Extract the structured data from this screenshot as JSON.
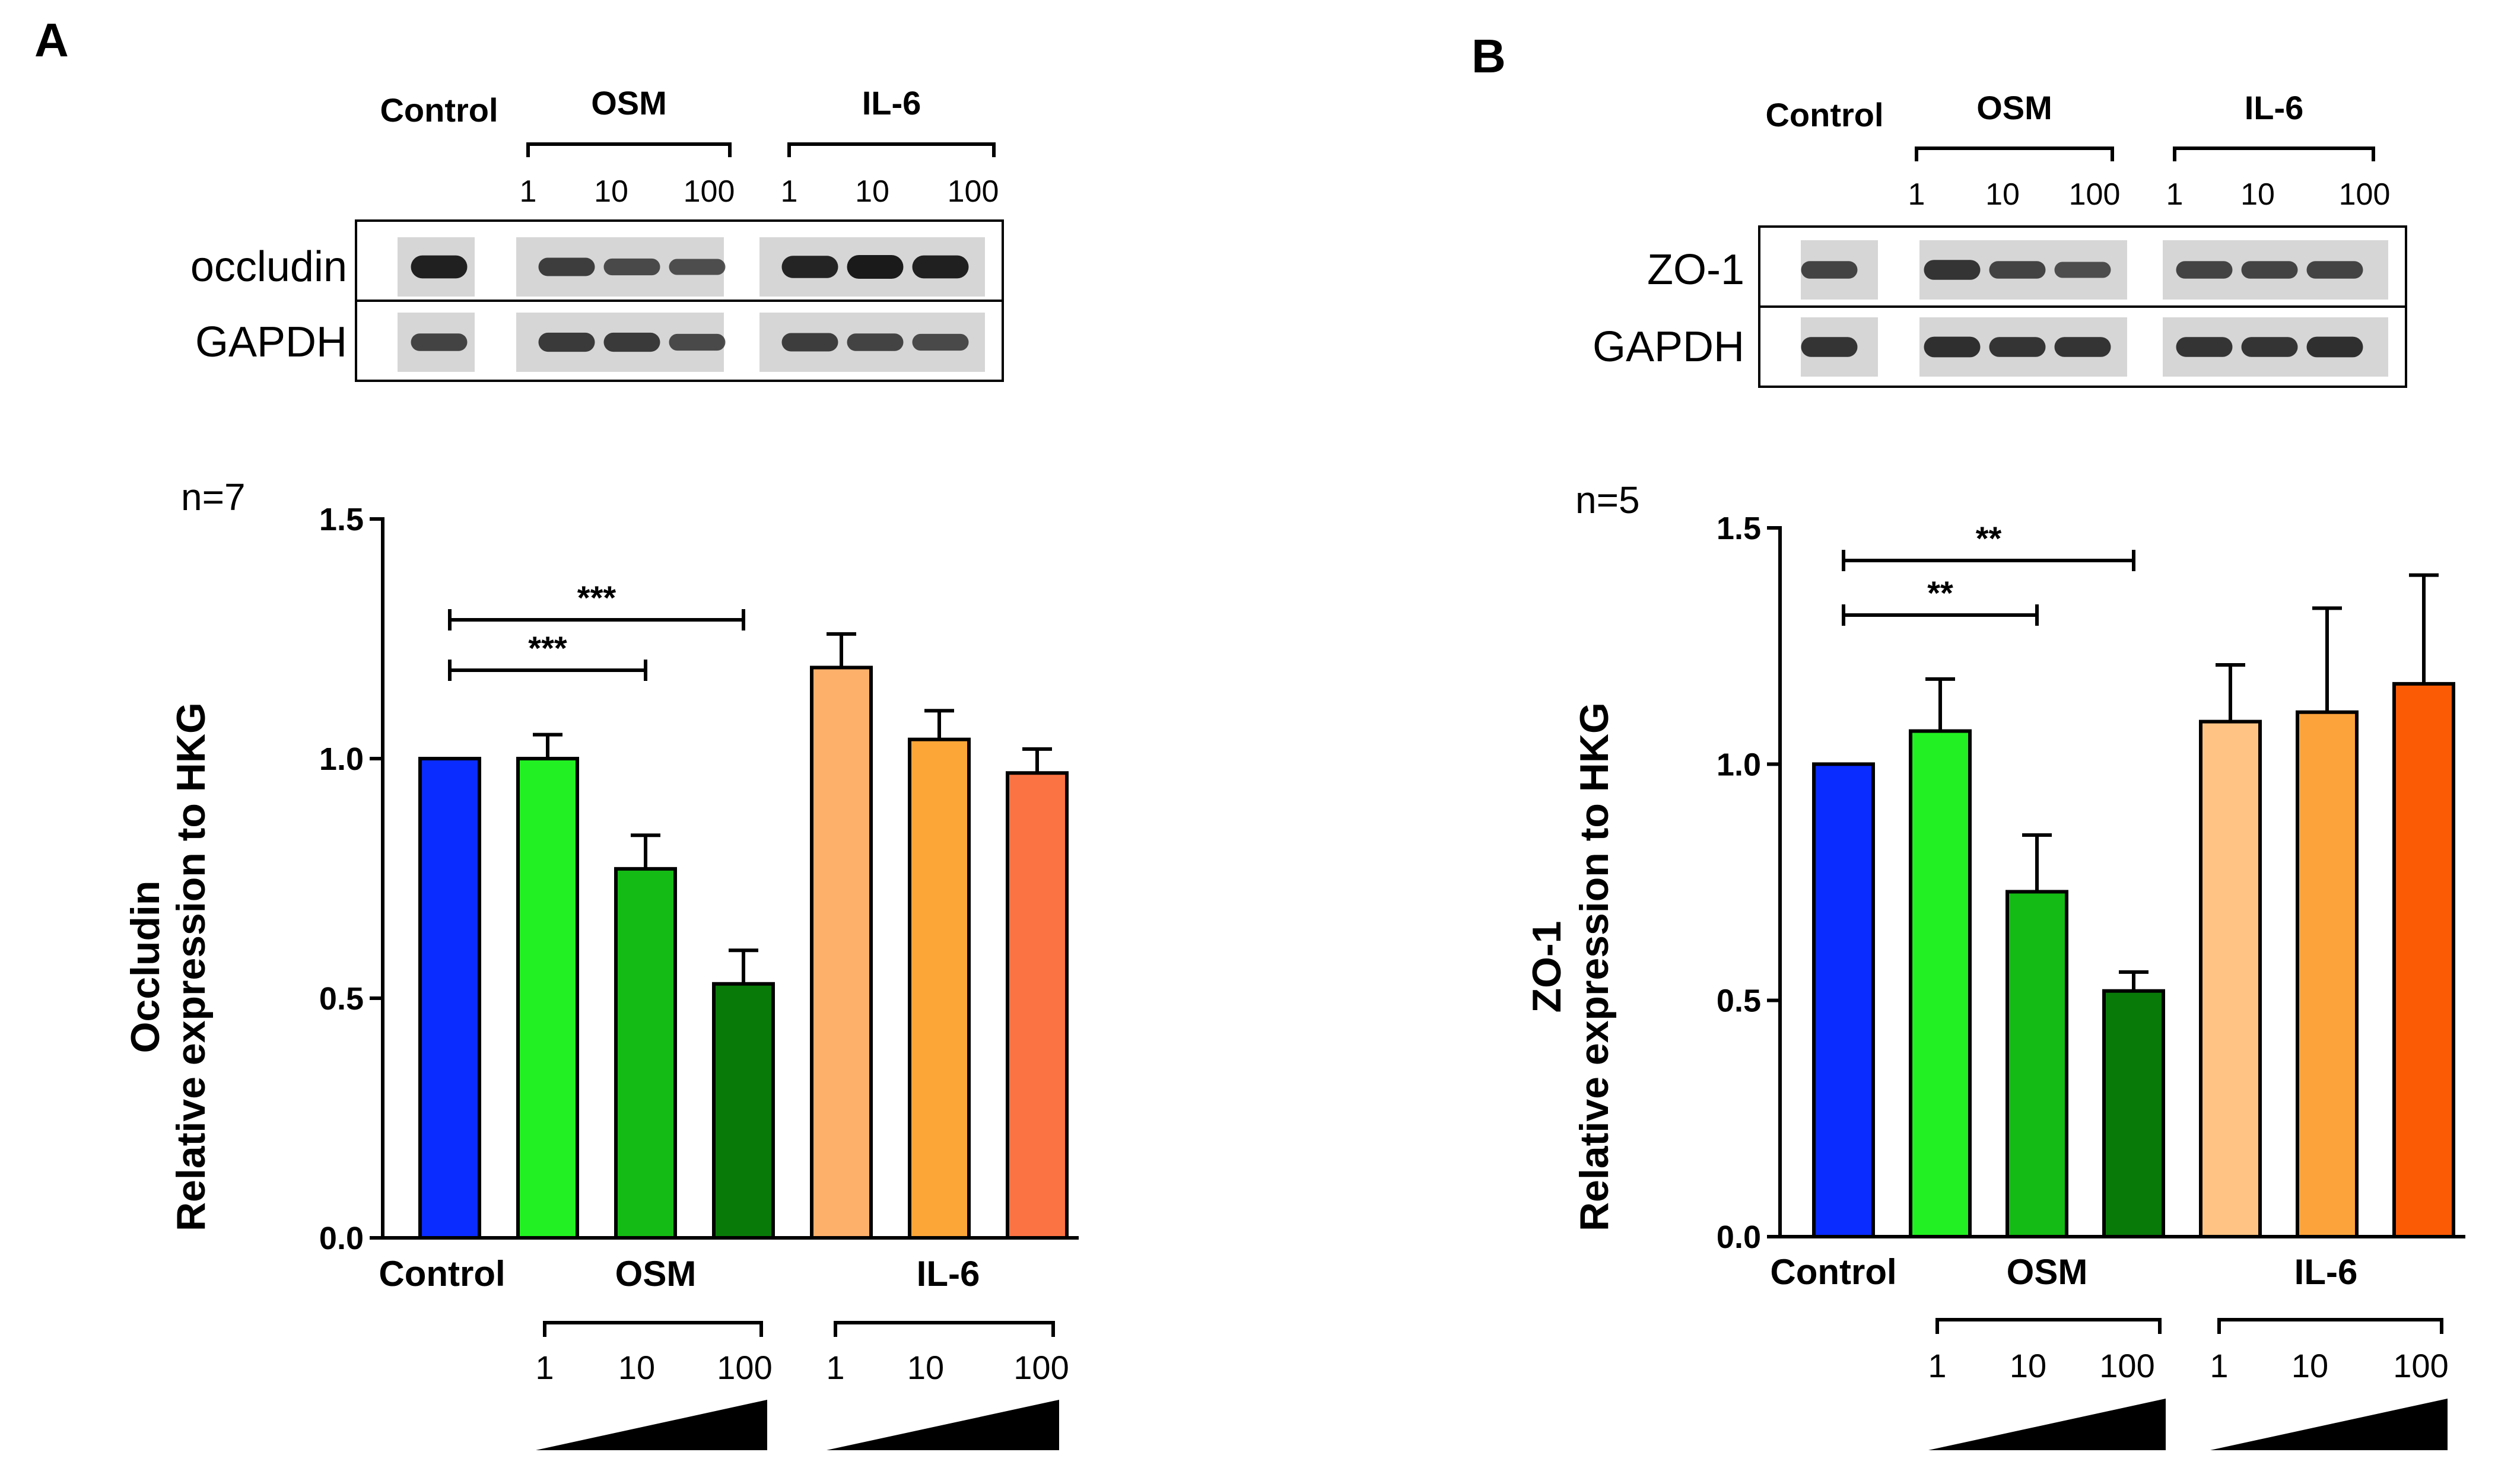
{
  "colors": {
    "control": "#0a2cff",
    "osm_1": "#22f022",
    "osm_10": "#14bb14",
    "osm_100": "#087a08",
    "il6_A_1": "#fdb06a",
    "il6_A_10": "#fca638",
    "il6_A_100": "#fc7343",
    "il6_B_1": "#ffc383",
    "il6_B_10": "#fda33c",
    "il6_B_100": "#fc5b05"
  },
  "panels": [
    {
      "letter": "A",
      "blot": {
        "control_label": "Control",
        "groups": [
          {
            "name": "OSM",
            "doses": [
              "1",
              "10",
              "100"
            ]
          },
          {
            "name": "IL-6",
            "doses": [
              "1",
              "10",
              "100"
            ]
          }
        ],
        "rows": [
          {
            "protein": "occludin",
            "intensity": [
              0.95,
              0.65,
              0.55,
              0.5,
              0.9,
              1.0,
              0.95
            ]
          },
          {
            "protein": "GAPDH",
            "intensity": [
              0.6,
              0.7,
              0.7,
              0.55,
              0.65,
              0.6,
              0.55
            ]
          }
        ]
      },
      "n_label": "n=7",
      "chart_data": {
        "type": "bar",
        "ylabel_line1": "Occludin",
        "ylabel_line2": "Relative expression to HKG",
        "ylim": [
          0,
          1.5
        ],
        "yticks": [
          "0.0",
          "0.5",
          "1.0",
          "1.5"
        ],
        "categories": [
          "Control",
          "OSM 1",
          "OSM 10",
          "OSM 100",
          "IL-6 1",
          "IL-6 10",
          "IL-6 100"
        ],
        "values": [
          1.0,
          1.0,
          0.77,
          0.53,
          1.19,
          1.04,
          0.97
        ],
        "errors": [
          0.0,
          0.05,
          0.07,
          0.07,
          0.07,
          0.06,
          0.05
        ],
        "x_group_labels": {
          "control": "Control",
          "osm": "OSM",
          "il6": "IL-6"
        },
        "dose_labels": [
          "1",
          "10",
          "100"
        ],
        "significance": [
          {
            "from": 0,
            "to": 2,
            "label": "***"
          },
          {
            "from": 0,
            "to": 3,
            "label": "***"
          }
        ]
      }
    },
    {
      "letter": "B",
      "blot": {
        "control_label": "Control",
        "groups": [
          {
            "name": "OSM",
            "doses": [
              "1",
              "10",
              "100"
            ]
          },
          {
            "name": "IL-6",
            "doses": [
              "1",
              "10",
              "100"
            ]
          }
        ],
        "rows": [
          {
            "protein": "ZO-1",
            "intensity": [
              0.6,
              0.75,
              0.6,
              0.5,
              0.6,
              0.6,
              0.6
            ]
          },
          {
            "protein": "GAPDH",
            "intensity": [
              0.75,
              0.8,
              0.75,
              0.75,
              0.75,
              0.75,
              0.8
            ]
          }
        ]
      },
      "n_label": "n=5",
      "chart_data": {
        "type": "bar",
        "ylabel_line1": "ZO-1",
        "ylabel_line2": "Relative expression to HKG",
        "ylim": [
          0,
          1.5
        ],
        "yticks": [
          "0.0",
          "0.5",
          "1.0",
          "1.5"
        ],
        "categories": [
          "Control",
          "OSM 1",
          "OSM 10",
          "OSM 100",
          "IL-6 1",
          "IL-6 10",
          "IL-6 100"
        ],
        "values": [
          1.0,
          1.07,
          0.73,
          0.52,
          1.09,
          1.11,
          1.17
        ],
        "errors": [
          0.0,
          0.11,
          0.12,
          0.04,
          0.12,
          0.22,
          0.23
        ],
        "x_group_labels": {
          "control": "Control",
          "osm": "OSM",
          "il6": "IL-6"
        },
        "dose_labels": [
          "1",
          "10",
          "100"
        ],
        "significance": [
          {
            "from": 0,
            "to": 2,
            "label": "**"
          },
          {
            "from": 0,
            "to": 3,
            "label": "**"
          }
        ]
      }
    }
  ]
}
